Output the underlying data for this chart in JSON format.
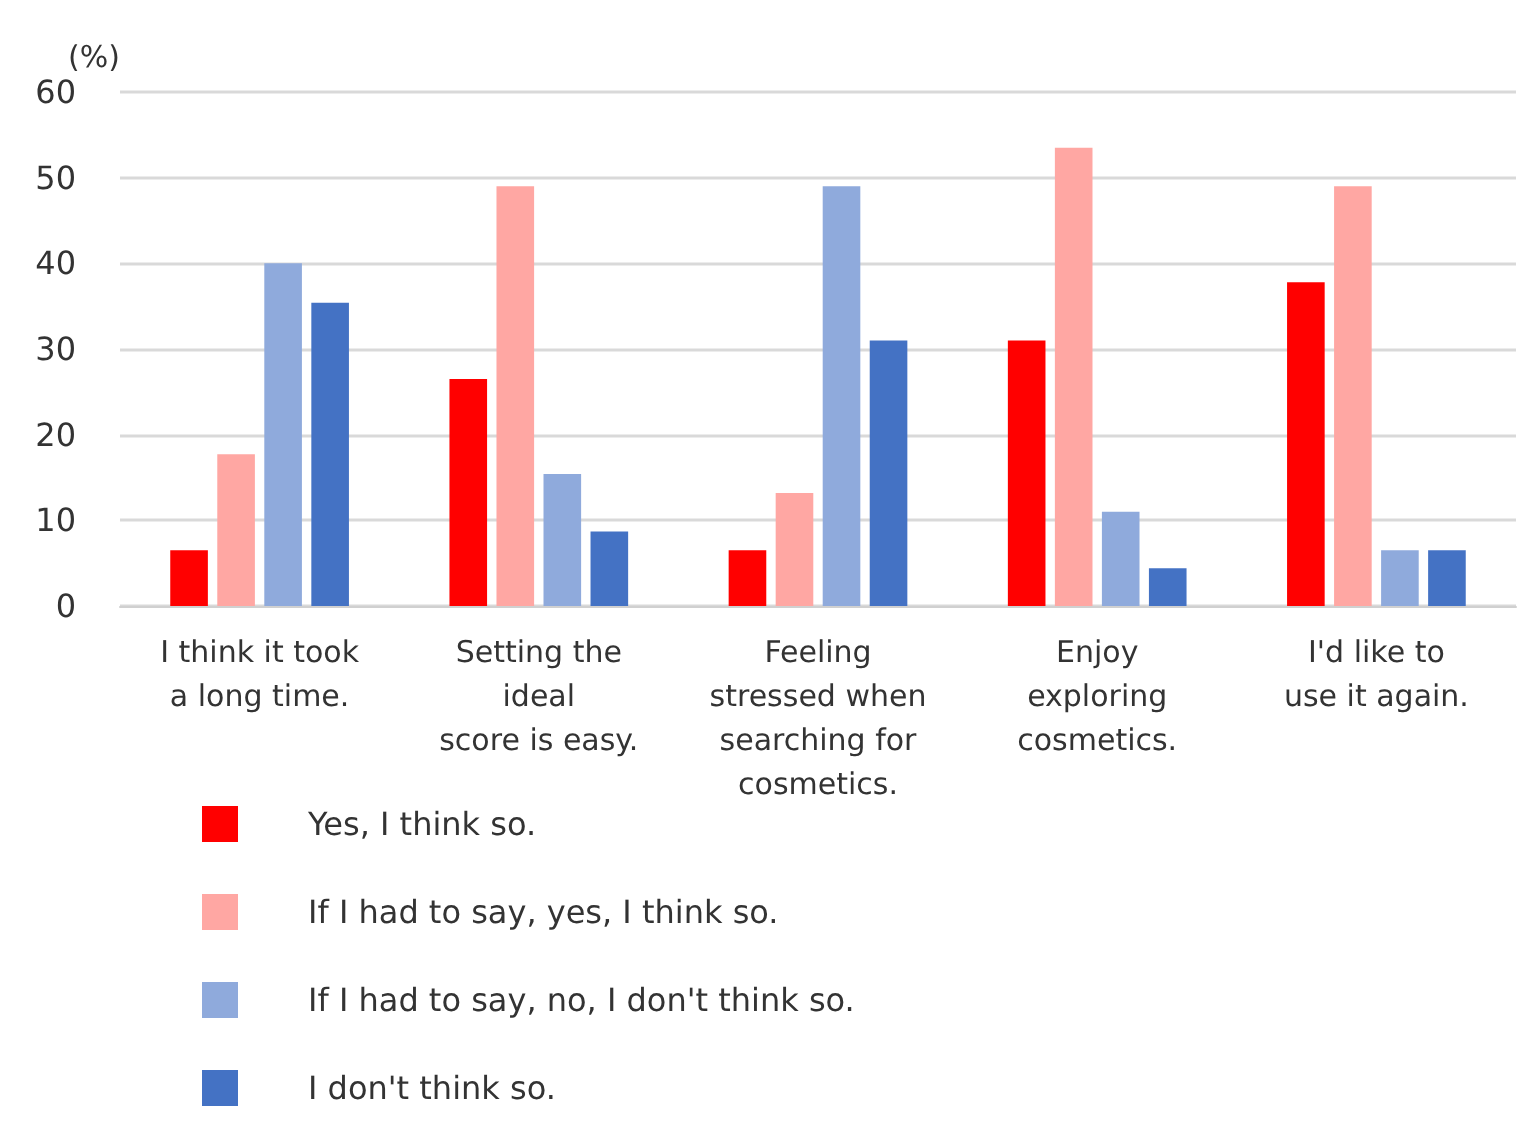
{
  "chart_data": {
    "type": "bar",
    "ylabel": "(%)",
    "categories": [
      "I think it took\na long time.",
      "Setting the\nideal\nscore is easy.",
      "Feeling\nstressed when\nsearching for\ncosmetics.",
      "Enjoy\nexploring\ncosmetics.",
      "I'd like to\nuse it again."
    ],
    "series": [
      {
        "name": "Yes, I think so.",
        "color": "#ff0000",
        "values": [
          6.5,
          26.5,
          6.5,
          31,
          37.8
        ]
      },
      {
        "name": "If I had to say, yes, I think so.",
        "color": "#ffa7a3",
        "values": [
          17.7,
          49,
          13.2,
          53.5,
          49
        ]
      },
      {
        "name": "If I had to say, no, I don't think so.",
        "color": "#8faadc",
        "values": [
          40,
          15.4,
          49,
          11,
          6.5
        ]
      },
      {
        "name": "I don't think so.",
        "color": "#4472c4",
        "values": [
          35.4,
          8.7,
          31,
          4.4,
          6.5
        ]
      }
    ],
    "ylim": [
      0,
      60
    ],
    "yticks": [
      0,
      10,
      20,
      30,
      40,
      50,
      60
    ],
    "grid": "y",
    "legend": "bottom left"
  }
}
